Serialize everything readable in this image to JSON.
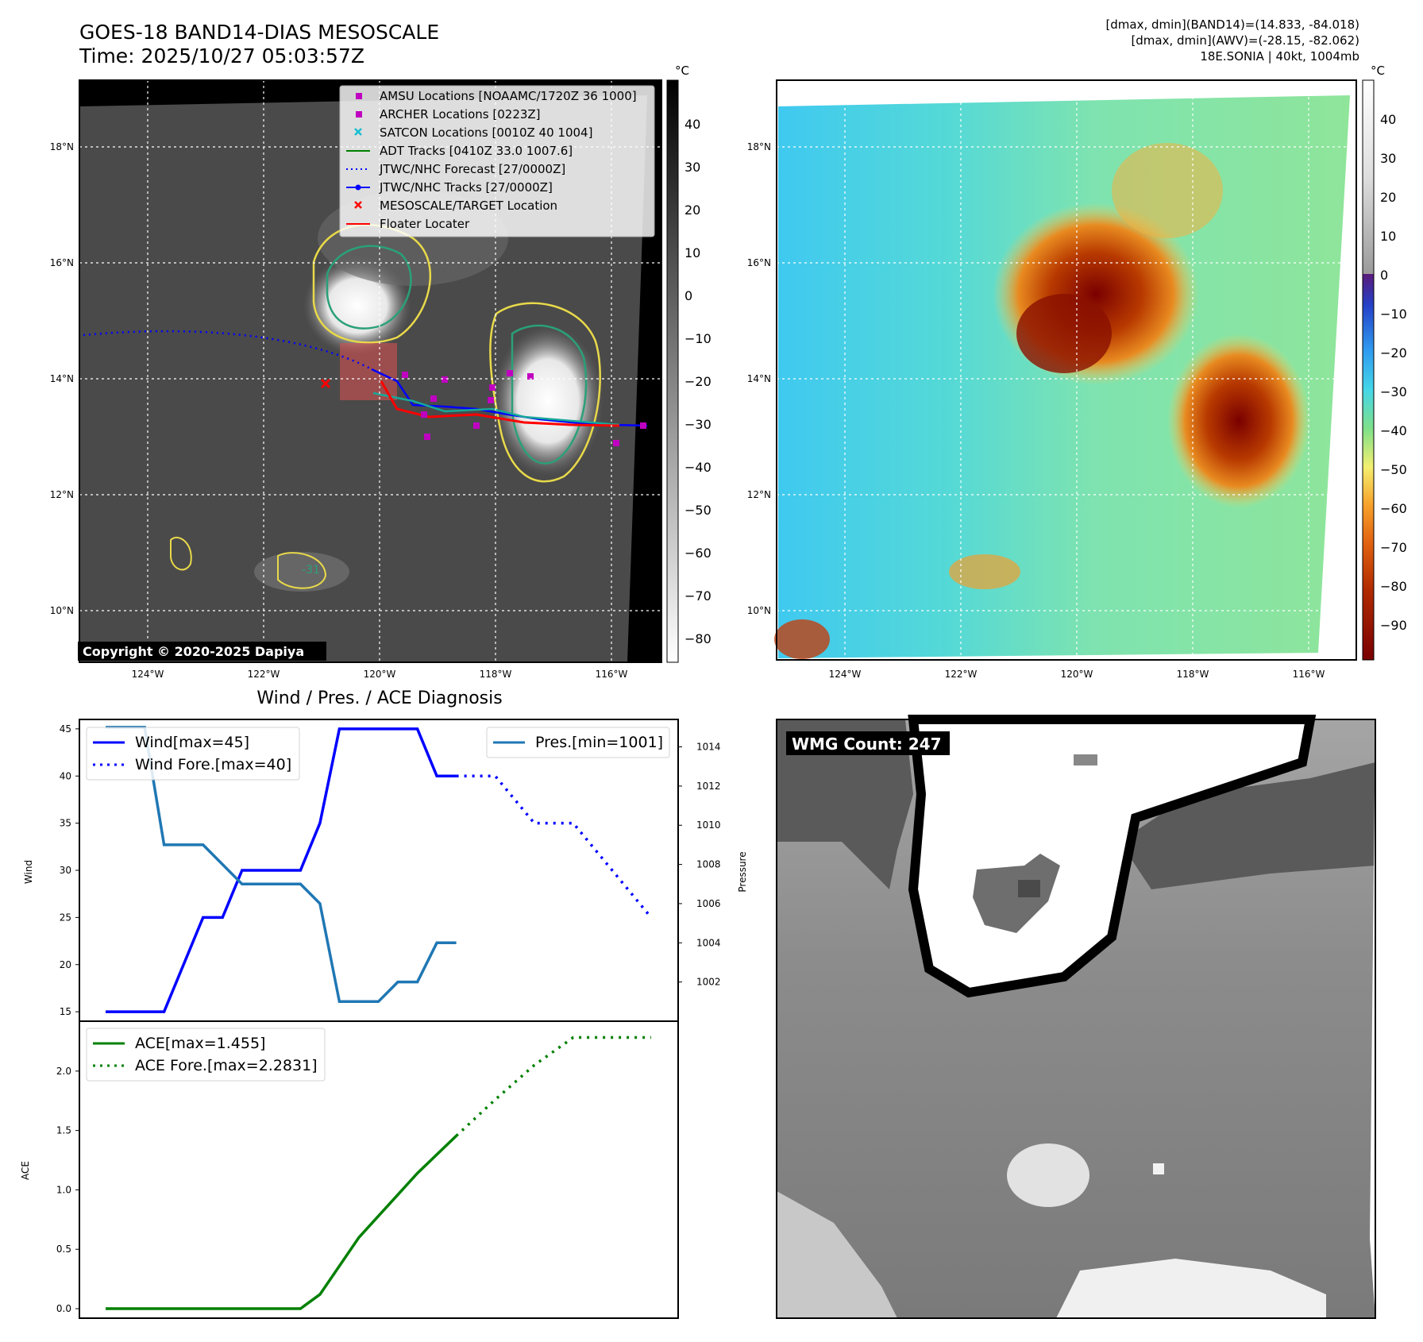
{
  "header": {
    "title_line1": "GOES-18 BAND14-DIAS MESOSCALE",
    "title_line2": "Time: 2025/10/27 05:03:57Z",
    "info_line1": "[dmax, dmin](BAND14)=(14.833, -84.018)",
    "info_line2": "[dmax, dmin](AWV)=(-28.15, -82.062)",
    "info_line3": "18E.SONIA | 40kt, 1004mb"
  },
  "map_panel": {
    "lon_ticks": [
      "124°W",
      "122°W",
      "120°W",
      "118°W",
      "116°W"
    ],
    "lat_ticks": [
      "18°N",
      "16°N",
      "14°N",
      "12°N",
      "10°N"
    ],
    "copyright": "Copyright © 2020-2025 Dapiya",
    "colorbar_unit": "°C",
    "colorbar_ticks": [
      "40",
      "30",
      "20",
      "10",
      "0",
      "−10",
      "−20",
      "−30",
      "−40",
      "−50",
      "−60",
      "−70",
      "−80"
    ],
    "contour_label": "-31",
    "legend": [
      {
        "label": "AMSU Locations [NOAAMC/1720Z 36 1000]",
        "marker": "square",
        "color": "#c000c0"
      },
      {
        "label": "ARCHER Locations [0223Z]",
        "marker": "square",
        "color": "#c000c0"
      },
      {
        "label": "SATCON Locations [0010Z 40 1004]",
        "marker": "x",
        "color": "#17becf"
      },
      {
        "label": "ADT Tracks [0410Z 33.0 1007.6]",
        "marker": "line",
        "color": "#008000"
      },
      {
        "label": "JTWC/NHC Forecast [27/0000Z]",
        "marker": "dotted",
        "color": "#0000ff"
      },
      {
        "label": "JTWC/NHC Tracks [27/0000Z]",
        "marker": "line-dot",
        "color": "#0000ff"
      },
      {
        "label": "MESOSCALE/TARGET Location",
        "marker": "x",
        "color": "#ff0000"
      },
      {
        "label": "Floater Locater",
        "marker": "line",
        "color": "#ff0000"
      }
    ]
  },
  "color_panel": {
    "lon_ticks": [
      "124°W",
      "122°W",
      "120°W",
      "118°W",
      "116°W"
    ],
    "lat_ticks": [
      "18°N",
      "16°N",
      "14°N",
      "12°N",
      "10°N"
    ],
    "colorbar_unit": "°C",
    "colorbar_ticks": [
      "40",
      "30",
      "20",
      "10",
      "0",
      "−10",
      "−20",
      "−30",
      "−40",
      "−50",
      "−60",
      "−70",
      "−80",
      "−90"
    ]
  },
  "wmg_panel": {
    "label": "WMG Count: 247"
  },
  "chart_data": [
    {
      "type": "line",
      "title": "Wind / Pres. / ACE Diagnosis",
      "ylabel": "Wind",
      "y2label": "Pressure",
      "ylim": [
        14,
        46
      ],
      "y2lim": [
        1000,
        1015.4
      ],
      "yticks": [
        15,
        20,
        25,
        30,
        35,
        40,
        45
      ],
      "y2ticks": [
        1002,
        1004,
        1006,
        1008,
        1010,
        1012,
        1014
      ],
      "series": [
        {
          "name": "Wind[max=45]",
          "axis": "left",
          "color": "#0000ff",
          "style": "solid",
          "x": [
            0,
            3,
            5,
            6,
            7,
            10,
            11,
            12,
            16,
            17,
            18
          ],
          "values": [
            15,
            15,
            25,
            25,
            30,
            30,
            35,
            45,
            45,
            40,
            40
          ]
        },
        {
          "name": "Wind Fore.[max=40]",
          "axis": "left",
          "color": "#0000ff",
          "style": "dotted",
          "x": [
            18,
            20,
            22,
            24,
            28
          ],
          "values": [
            40,
            40,
            35,
            35,
            25
          ]
        },
        {
          "name": "Pres.[min=1001]",
          "axis": "right",
          "color": "#1f77b4",
          "style": "solid",
          "x": [
            0,
            2,
            3,
            5,
            7,
            10,
            11,
            12,
            14,
            15,
            16,
            17,
            18
          ],
          "values": [
            1015,
            1015,
            1009,
            1009,
            1007,
            1007,
            1006,
            1001,
            1001,
            1002,
            1002,
            1004,
            1004
          ]
        }
      ]
    },
    {
      "type": "line",
      "ylabel": "ACE",
      "ylim": [
        -0.08,
        2.42
      ],
      "yticks": [
        0.0,
        0.5,
        1.0,
        1.5,
        2.0
      ],
      "ytick_labels": [
        "0.0",
        "0.5",
        "1.0",
        "1.5",
        "2.0"
      ],
      "series": [
        {
          "name": "ACE[max=1.455]",
          "color": "#008000",
          "style": "solid",
          "x": [
            0,
            10,
            11,
            13,
            16,
            18
          ],
          "values": [
            0,
            0,
            0.12,
            0.6,
            1.14,
            1.455
          ]
        },
        {
          "name": "ACE Fore.[max=2.2831]",
          "color": "#008000",
          "style": "dotted",
          "x": [
            18,
            20,
            22,
            24,
            28
          ],
          "values": [
            1.455,
            1.76,
            2.05,
            2.2831,
            2.2831
          ]
        }
      ]
    }
  ]
}
